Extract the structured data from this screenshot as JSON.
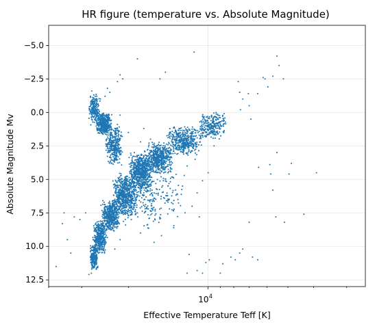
{
  "chart_data": {
    "type": "scatter",
    "title": "HR figure (temperature vs. Absolute Magnitude)",
    "xlabel": "Effective Temperature Teff [K]",
    "ylabel": "Absolute Magnitude Mv",
    "x_scale": "log",
    "x_reversed": true,
    "y_inverted": true,
    "xlim": [
      40000,
      2550
    ],
    "ylim": [
      13.0,
      -6.5
    ],
    "x_ticks": [
      {
        "value": 10000,
        "base": "10",
        "exp": "4"
      }
    ],
    "y_ticks": [
      {
        "value": -5.0,
        "label": "−5.0"
      },
      {
        "value": -2.5,
        "label": "−2.5"
      },
      {
        "value": 0.0,
        "label": "0.0"
      },
      {
        "value": 2.5,
        "label": "2.5"
      },
      {
        "value": 5.0,
        "label": "5.0"
      },
      {
        "value": 7.5,
        "label": "7.5"
      },
      {
        "value": 10.0,
        "label": "10.0"
      },
      {
        "value": 12.5,
        "label": "12.5"
      }
    ],
    "grid": true,
    "marker_color": "#1f77b4",
    "representative_points": [
      [
        11300,
        -4.5
      ],
      [
        14500,
        -3.0
      ],
      [
        15200,
        -2.5
      ],
      [
        18500,
        -4.0
      ],
      [
        21000,
        -2.5
      ],
      [
        21500,
        -2.8
      ],
      [
        22000,
        -2.3
      ],
      [
        24000,
        -1.8
      ],
      [
        7700,
        -2.3
      ],
      [
        7600,
        -1.5
      ],
      [
        7550,
        -0.2
      ],
      [
        7400,
        -1.0
      ],
      [
        7050,
        -1.4
      ],
      [
        7000,
        -0.5
      ],
      [
        6900,
        0.5
      ],
      [
        6500,
        -1.4
      ],
      [
        6200,
        -2.6
      ],
      [
        6100,
        -2.5
      ],
      [
        5950,
        -1.9
      ],
      [
        5700,
        -2.7
      ],
      [
        5500,
        -4.2
      ],
      [
        5400,
        -3.5
      ],
      [
        5200,
        -2.5
      ],
      [
        3900,
        4.5
      ],
      [
        4350,
        7.6
      ],
      [
        4950,
        4.6
      ],
      [
        4850,
        3.8
      ],
      [
        5150,
        8.2
      ],
      [
        5500,
        3.0
      ],
      [
        5700,
        5.8
      ],
      [
        5550,
        7.8
      ],
      [
        5850,
        3.9
      ],
      [
        5800,
        4.6
      ],
      [
        6450,
        4.1
      ],
      [
        7000,
        8.2
      ],
      [
        6500,
        11.0
      ],
      [
        6800,
        10.8
      ],
      [
        7400,
        10.2
      ],
      [
        7600,
        10.5
      ],
      [
        7900,
        11.0
      ],
      [
        8200,
        10.8
      ],
      [
        8800,
        11.3
      ],
      [
        9000,
        12.0
      ],
      [
        9900,
        11.0
      ],
      [
        10200,
        11.2
      ],
      [
        10500,
        12.0
      ],
      [
        11000,
        11.8
      ],
      [
        11800,
        10.6
      ],
      [
        12000,
        12.0
      ],
      [
        9000,
        0.4
      ],
      [
        9200,
        0.8
      ],
      [
        9500,
        1.0
      ],
      [
        9800,
        1.2
      ],
      [
        10000,
        1.1
      ],
      [
        10200,
        1.5
      ],
      [
        10500,
        1.3
      ],
      [
        10800,
        1.7
      ],
      [
        11000,
        1.9
      ],
      [
        11500,
        2.1
      ],
      [
        12000,
        2.3
      ],
      [
        12500,
        2.5
      ],
      [
        13000,
        2.8
      ],
      [
        13500,
        2.9
      ],
      [
        14000,
        3.1
      ],
      [
        14500,
        3.3
      ],
      [
        15000,
        3.6
      ],
      [
        15500,
        3.8
      ],
      [
        16000,
        4.0
      ],
      [
        16500,
        4.2
      ],
      [
        17000,
        4.4
      ],
      [
        17500,
        4.7
      ],
      [
        18000,
        4.9
      ],
      [
        18500,
        5.2
      ],
      [
        19000,
        5.5
      ],
      [
        19500,
        5.7
      ],
      [
        20000,
        6.0
      ],
      [
        20500,
        6.2
      ],
      [
        21000,
        6.5
      ],
      [
        21500,
        6.8
      ],
      [
        22000,
        7.0
      ],
      [
        22500,
        7.3
      ],
      [
        23000,
        7.6
      ],
      [
        23500,
        7.9
      ],
      [
        24000,
        8.2
      ],
      [
        24500,
        8.5
      ],
      [
        25000,
        8.9
      ],
      [
        25500,
        9.3
      ],
      [
        26000,
        9.8
      ],
      [
        26500,
        10.2
      ],
      [
        27000,
        10.7
      ],
      [
        27300,
        11.2
      ],
      [
        27500,
        11.7
      ],
      [
        27600,
        12.0
      ],
      [
        28200,
        12.1
      ],
      [
        21500,
        0.2
      ],
      [
        22000,
        0.9
      ],
      [
        22500,
        1.2
      ],
      [
        23000,
        1.7
      ],
      [
        23500,
        2.2
      ],
      [
        24000,
        2.7
      ],
      [
        25000,
        0.6
      ],
      [
        25500,
        1.4
      ],
      [
        26000,
        -0.2
      ],
      [
        26500,
        -0.6
      ],
      [
        27000,
        -1.0
      ],
      [
        27500,
        -1.6
      ],
      [
        27800,
        -1.2
      ],
      [
        26000,
        0.3
      ],
      [
        27500,
        0.5
      ],
      [
        28000,
        -0.2
      ],
      [
        23500,
        -1.5
      ],
      [
        24500,
        -1.2
      ],
      [
        25500,
        -1.0
      ],
      [
        20000,
        1.5
      ],
      [
        19000,
        3.0
      ],
      [
        18000,
        2.2
      ],
      [
        16500,
        2.0
      ],
      [
        17500,
        1.2
      ],
      [
        12500,
        5.5
      ],
      [
        13000,
        6.5
      ],
      [
        14000,
        7.2
      ],
      [
        13500,
        8.6
      ],
      [
        15000,
        9.2
      ],
      [
        16000,
        9.7
      ],
      [
        17000,
        8.4
      ],
      [
        18000,
        9.0
      ],
      [
        15500,
        4.5
      ],
      [
        16500,
        5.5
      ],
      [
        17500,
        6.0
      ],
      [
        18500,
        7.5
      ],
      [
        19500,
        8.0
      ],
      [
        20500,
        8.4
      ],
      [
        21500,
        9.5
      ],
      [
        22500,
        10.2
      ],
      [
        10000,
        4.5
      ],
      [
        10500,
        5.1
      ],
      [
        11000,
        6.0
      ],
      [
        11500,
        7.0
      ],
      [
        10800,
        7.8
      ],
      [
        11200,
        3.5
      ],
      [
        12000,
        4.0
      ],
      [
        9500,
        2.5
      ],
      [
        29000,
        7.5
      ],
      [
        30500,
        8.0
      ],
      [
        32000,
        7.8
      ],
      [
        34000,
        9.5
      ],
      [
        33000,
        10.5
      ],
      [
        35500,
        8.3
      ],
      [
        35000,
        7.5
      ],
      [
        37500,
        11.5
      ]
    ],
    "clusters": [
      {
        "x_range": [
          8500,
          11000
        ],
        "y_range": [
          0.0,
          2.0
        ],
        "count": 260
      },
      {
        "x_range": [
          10500,
          14500
        ],
        "y_range": [
          1.0,
          3.2
        ],
        "count": 420
      },
      {
        "x_range": [
          13500,
          17500
        ],
        "y_range": [
          2.2,
          4.6
        ],
        "count": 520
      },
      {
        "x_range": [
          16000,
          20000
        ],
        "y_range": [
          3.0,
          6.0
        ],
        "count": 620
      },
      {
        "x_range": [
          18500,
          23000
        ],
        "y_range": [
          4.5,
          7.8
        ],
        "count": 620
      },
      {
        "x_range": [
          21500,
          25500
        ],
        "y_range": [
          6.5,
          9.0
        ],
        "count": 460
      },
      {
        "x_range": [
          24000,
          27300
        ],
        "y_range": [
          8.0,
          10.6
        ],
        "count": 360
      },
      {
        "x_range": [
          26000,
          28000
        ],
        "y_range": [
          9.8,
          11.8
        ],
        "count": 220
      },
      {
        "x_range": [
          23000,
          26500
        ],
        "y_range": [
          0.0,
          1.7
        ],
        "count": 420
      },
      {
        "x_range": [
          21000,
          24500
        ],
        "y_range": [
          1.0,
          4.0
        ],
        "count": 330
      },
      {
        "x_range": [
          25500,
          28300
        ],
        "y_range": [
          -1.4,
          1.0
        ],
        "count": 190
      },
      {
        "x_range": [
          12000,
          22000
        ],
        "y_range": [
          3.5,
          9.0
        ],
        "count": 260
      }
    ]
  }
}
